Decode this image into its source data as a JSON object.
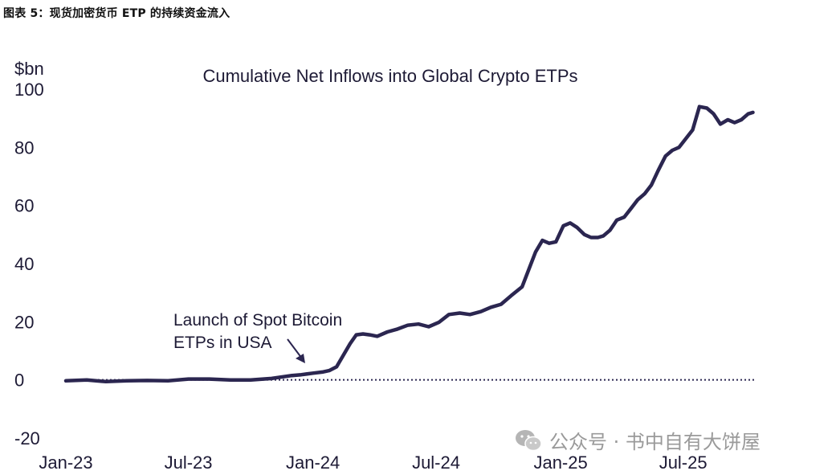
{
  "figure_caption": "图表 5：现货加密货币 ETP 的持续资金流入",
  "watermark": {
    "icon": "wechat-icon",
    "text": "公众号 · 书中自有大饼屋"
  },
  "colors": {
    "line": "#2b2650",
    "zero_line": "#2b2650",
    "text": "#1d1a35"
  },
  "chart_data": {
    "type": "line",
    "title": "Cumulative Net Inflows into Global Crypto ETPs",
    "ylabel": "$bn",
    "xlabel": "",
    "ylim": [
      -20,
      100
    ],
    "yticks": [
      "100",
      "80",
      "60",
      "40",
      "20",
      "0",
      "-20"
    ],
    "xticks": [
      "Jan-23",
      "Jul-23",
      "Jan-24",
      "Jul-24",
      "Jan-25",
      "Jul-25"
    ],
    "xlim": [
      "2023-01-01",
      "2025-10-15"
    ],
    "grid": false,
    "zero_line": "dotted",
    "annotation": {
      "lines": [
        "Launch of Spot Bitcoin",
        "ETPs in USA"
      ],
      "date": "2024-01-11",
      "value": 2.5
    },
    "series": [
      {
        "x": [
          "2023-01-01",
          "2023-02-01",
          "2023-03-01",
          "2023-04-01",
          "2023-05-01",
          "2023-06-01",
          "2023-07-01",
          "2023-08-01",
          "2023-09-01",
          "2023-10-01",
          "2023-11-01",
          "2023-12-01",
          "2023-12-15",
          "2024-01-01",
          "2024-01-15",
          "2024-01-25",
          "2024-02-05",
          "2024-02-15",
          "2024-02-25",
          "2024-03-05",
          "2024-03-15",
          "2024-03-25",
          "2024-04-05",
          "2024-04-20",
          "2024-05-05",
          "2024-05-20",
          "2024-06-05",
          "2024-06-20",
          "2024-07-05",
          "2024-07-20",
          "2024-08-05",
          "2024-08-20",
          "2024-09-05",
          "2024-09-20",
          "2024-10-05",
          "2024-10-20",
          "2024-11-05",
          "2024-11-15",
          "2024-11-25",
          "2024-12-05",
          "2024-12-15",
          "2024-12-25",
          "2025-01-05",
          "2025-01-15",
          "2025-01-25",
          "2025-02-05",
          "2025-02-15",
          "2025-02-25",
          "2025-03-05",
          "2025-03-15",
          "2025-03-25",
          "2025-04-05",
          "2025-04-15",
          "2025-04-25",
          "2025-05-05",
          "2025-05-15",
          "2025-05-25",
          "2025-06-05",
          "2025-06-15",
          "2025-06-25",
          "2025-07-05",
          "2025-07-15",
          "2025-07-25",
          "2025-08-05",
          "2025-08-15",
          "2025-08-25",
          "2025-09-05",
          "2025-09-15",
          "2025-09-25",
          "2025-10-05",
          "2025-10-12"
        ],
        "values": [
          -0.3,
          0,
          -0.6,
          -0.3,
          -0.2,
          -0.3,
          0.3,
          0.3,
          0,
          0,
          0.5,
          1.5,
          1.8,
          2.3,
          2.7,
          3.2,
          4.5,
          8.5,
          12.5,
          15.5,
          15.8,
          15.5,
          15,
          16.5,
          17.5,
          18.8,
          19.2,
          18.3,
          19.8,
          22.5,
          23,
          22.5,
          23.5,
          25,
          26,
          29,
          32,
          38,
          44,
          48,
          47,
          47.5,
          53,
          54,
          52.5,
          50,
          49,
          49,
          49.5,
          51.5,
          55,
          56,
          59,
          62,
          64,
          67,
          72,
          77,
          79,
          80,
          83,
          86,
          94,
          93.5,
          91.5,
          88,
          89.5,
          88.5,
          89.5,
          91.5,
          92
        ]
      }
    ]
  }
}
